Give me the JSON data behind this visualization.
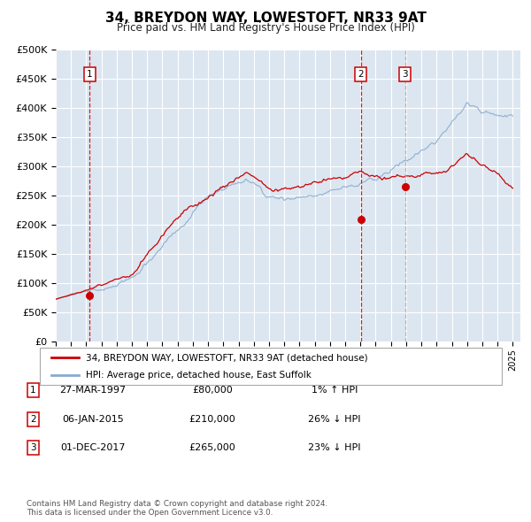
{
  "title": "34, BREYDON WAY, LOWESTOFT, NR33 9AT",
  "subtitle": "Price paid vs. HM Land Registry's House Price Index (HPI)",
  "legend_label_red": "34, BREYDON WAY, LOWESTOFT, NR33 9AT (detached house)",
  "legend_label_blue": "HPI: Average price, detached house, East Suffolk",
  "footnote": "Contains HM Land Registry data © Crown copyright and database right 2024.\nThis data is licensed under the Open Government Licence v3.0.",
  "transactions": [
    {
      "num": 1,
      "date": "27-MAR-1997",
      "price": 80000,
      "year": 1997.23,
      "hpi_rel": "1% ↑ HPI"
    },
    {
      "num": 2,
      "date": "06-JAN-2015",
      "price": 210000,
      "year": 2015.02,
      "hpi_rel": "26% ↓ HPI"
    },
    {
      "num": 3,
      "date": "01-DEC-2017",
      "price": 265000,
      "year": 2017.92,
      "hpi_rel": "23% ↓ HPI"
    }
  ],
  "vline_colors": [
    "#cc0000",
    "#cc0000",
    "#aaaaaa"
  ],
  "ylim": [
    0,
    500000
  ],
  "yticks": [
    0,
    50000,
    100000,
    150000,
    200000,
    250000,
    300000,
    350000,
    400000,
    450000,
    500000
  ],
  "xlim_start": 1995.0,
  "xlim_end": 2025.5,
  "plot_bg_color": "#dce6f1",
  "grid_color": "#ffffff",
  "red_line_color": "#cc0000",
  "blue_line_color": "#88aacc",
  "marker_color": "#cc0000",
  "title_fontsize": 11,
  "subtitle_fontsize": 8.5
}
